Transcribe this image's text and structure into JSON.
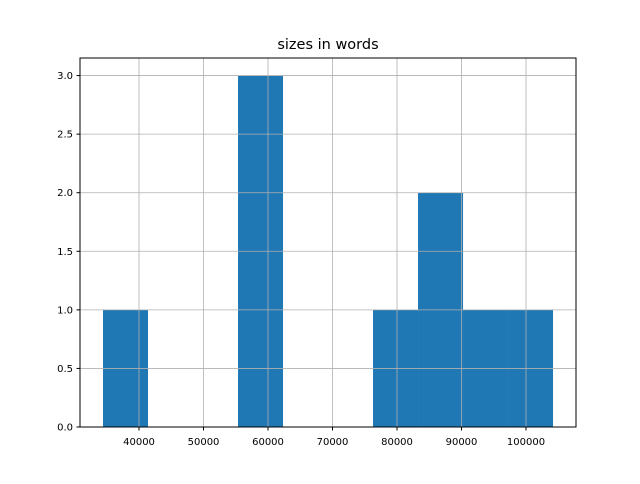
{
  "chart_data": {
    "type": "bar",
    "title": "sizes in words",
    "xlabel": "",
    "ylabel": "",
    "bin_edges": [
      34419,
      41396,
      48373,
      55350,
      62327,
      69304,
      76281,
      83258,
      90235,
      97212,
      104189
    ],
    "values": [
      1,
      0,
      0,
      3,
      0,
      0,
      1,
      2,
      1,
      1
    ],
    "xlim": [
      30850,
      107750
    ],
    "ylim": [
      0,
      3.15
    ],
    "xticks": [
      40000,
      50000,
      60000,
      70000,
      80000,
      90000,
      100000
    ],
    "xtick_labels": [
      "40000",
      "50000",
      "60000",
      "70000",
      "80000",
      "90000",
      "100000"
    ],
    "yticks": [
      0,
      0.5,
      1,
      1.5,
      2,
      2.5,
      3
    ],
    "ytick_labels": [
      "0.0",
      "0.5",
      "1.0",
      "1.5",
      "2.0",
      "2.5",
      "3.0"
    ],
    "grid": true,
    "bar_color": "#1f77b4"
  }
}
